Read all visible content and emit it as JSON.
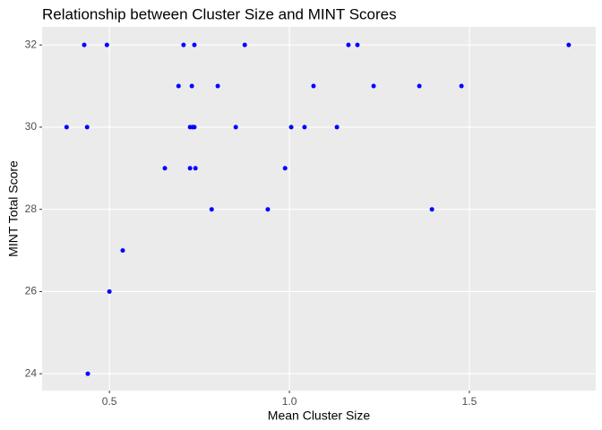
{
  "chart_data": {
    "type": "scatter",
    "title": "Relationship between Cluster Size and MINT Scores",
    "x_label": "Mean Cluster Size",
    "y_label": "MINT Total Score",
    "color": "#0000ff",
    "grid": true,
    "xlim": [
      0.313,
      1.851
    ],
    "ylim": [
      23.59,
      32.44
    ],
    "xticks": [
      0.5,
      {
        "value": 1.0,
        "label": "1.0"
      },
      1.5
    ],
    "yticks": [
      24,
      26,
      28,
      30,
      32
    ],
    "x": [
      0.43,
      0.493,
      0.706,
      0.736,
      0.876,
      1.164,
      1.189,
      1.776,
      0.692,
      0.729,
      0.801,
      1.067,
      1.234,
      1.361,
      1.478,
      0.381,
      0.438,
      0.724,
      0.731,
      0.736,
      0.851,
      1.005,
      1.042,
      1.132,
      0.654,
      0.724,
      0.739,
      0.988,
      0.784,
      0.94,
      1.396,
      0.537,
      0.5,
      0.44
    ],
    "values": [
      32,
      32,
      32,
      32,
      32,
      32,
      32,
      32,
      31,
      31,
      31,
      31,
      31,
      31,
      31,
      30,
      30,
      30,
      30,
      30,
      30,
      30,
      30,
      30,
      29,
      29,
      29,
      29,
      28,
      28,
      28,
      27,
      26,
      24
    ]
  }
}
